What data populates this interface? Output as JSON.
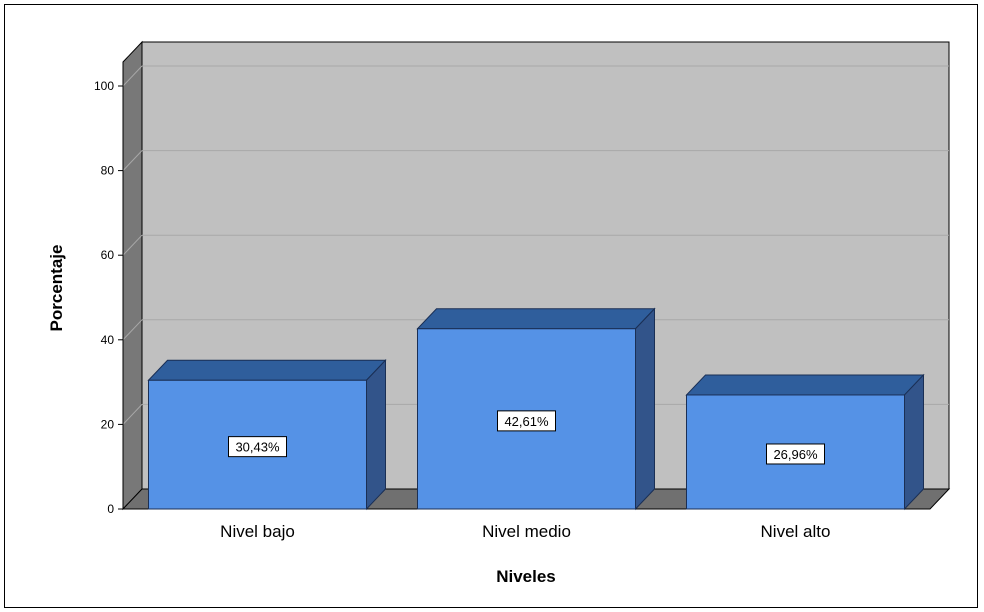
{
  "chart_data": {
    "type": "bar",
    "categories": [
      "Nivel bajo",
      "Nivel medio",
      "Nivel alto"
    ],
    "values": [
      30.43,
      42.61,
      26.96
    ],
    "data_labels": [
      "30,43%",
      "42,61%",
      "26,96%"
    ],
    "xlabel": "Niveles",
    "ylabel": "Porcentaje",
    "ylim": [
      0,
      100
    ],
    "yticks": [
      0,
      20,
      40,
      60,
      80,
      100
    ],
    "ytick_labels": [
      "0",
      "20",
      "40",
      "60",
      "80",
      "100"
    ],
    "grid": true,
    "style": "3d",
    "colors": {
      "bar_front": "#5592e6",
      "bar_top": "#2f5e9c",
      "bar_side": "#32548a",
      "back_wall": "#c0c0c0",
      "side_wall": "#787878",
      "floor": "#707070",
      "grid": "#a8a8a8"
    }
  }
}
